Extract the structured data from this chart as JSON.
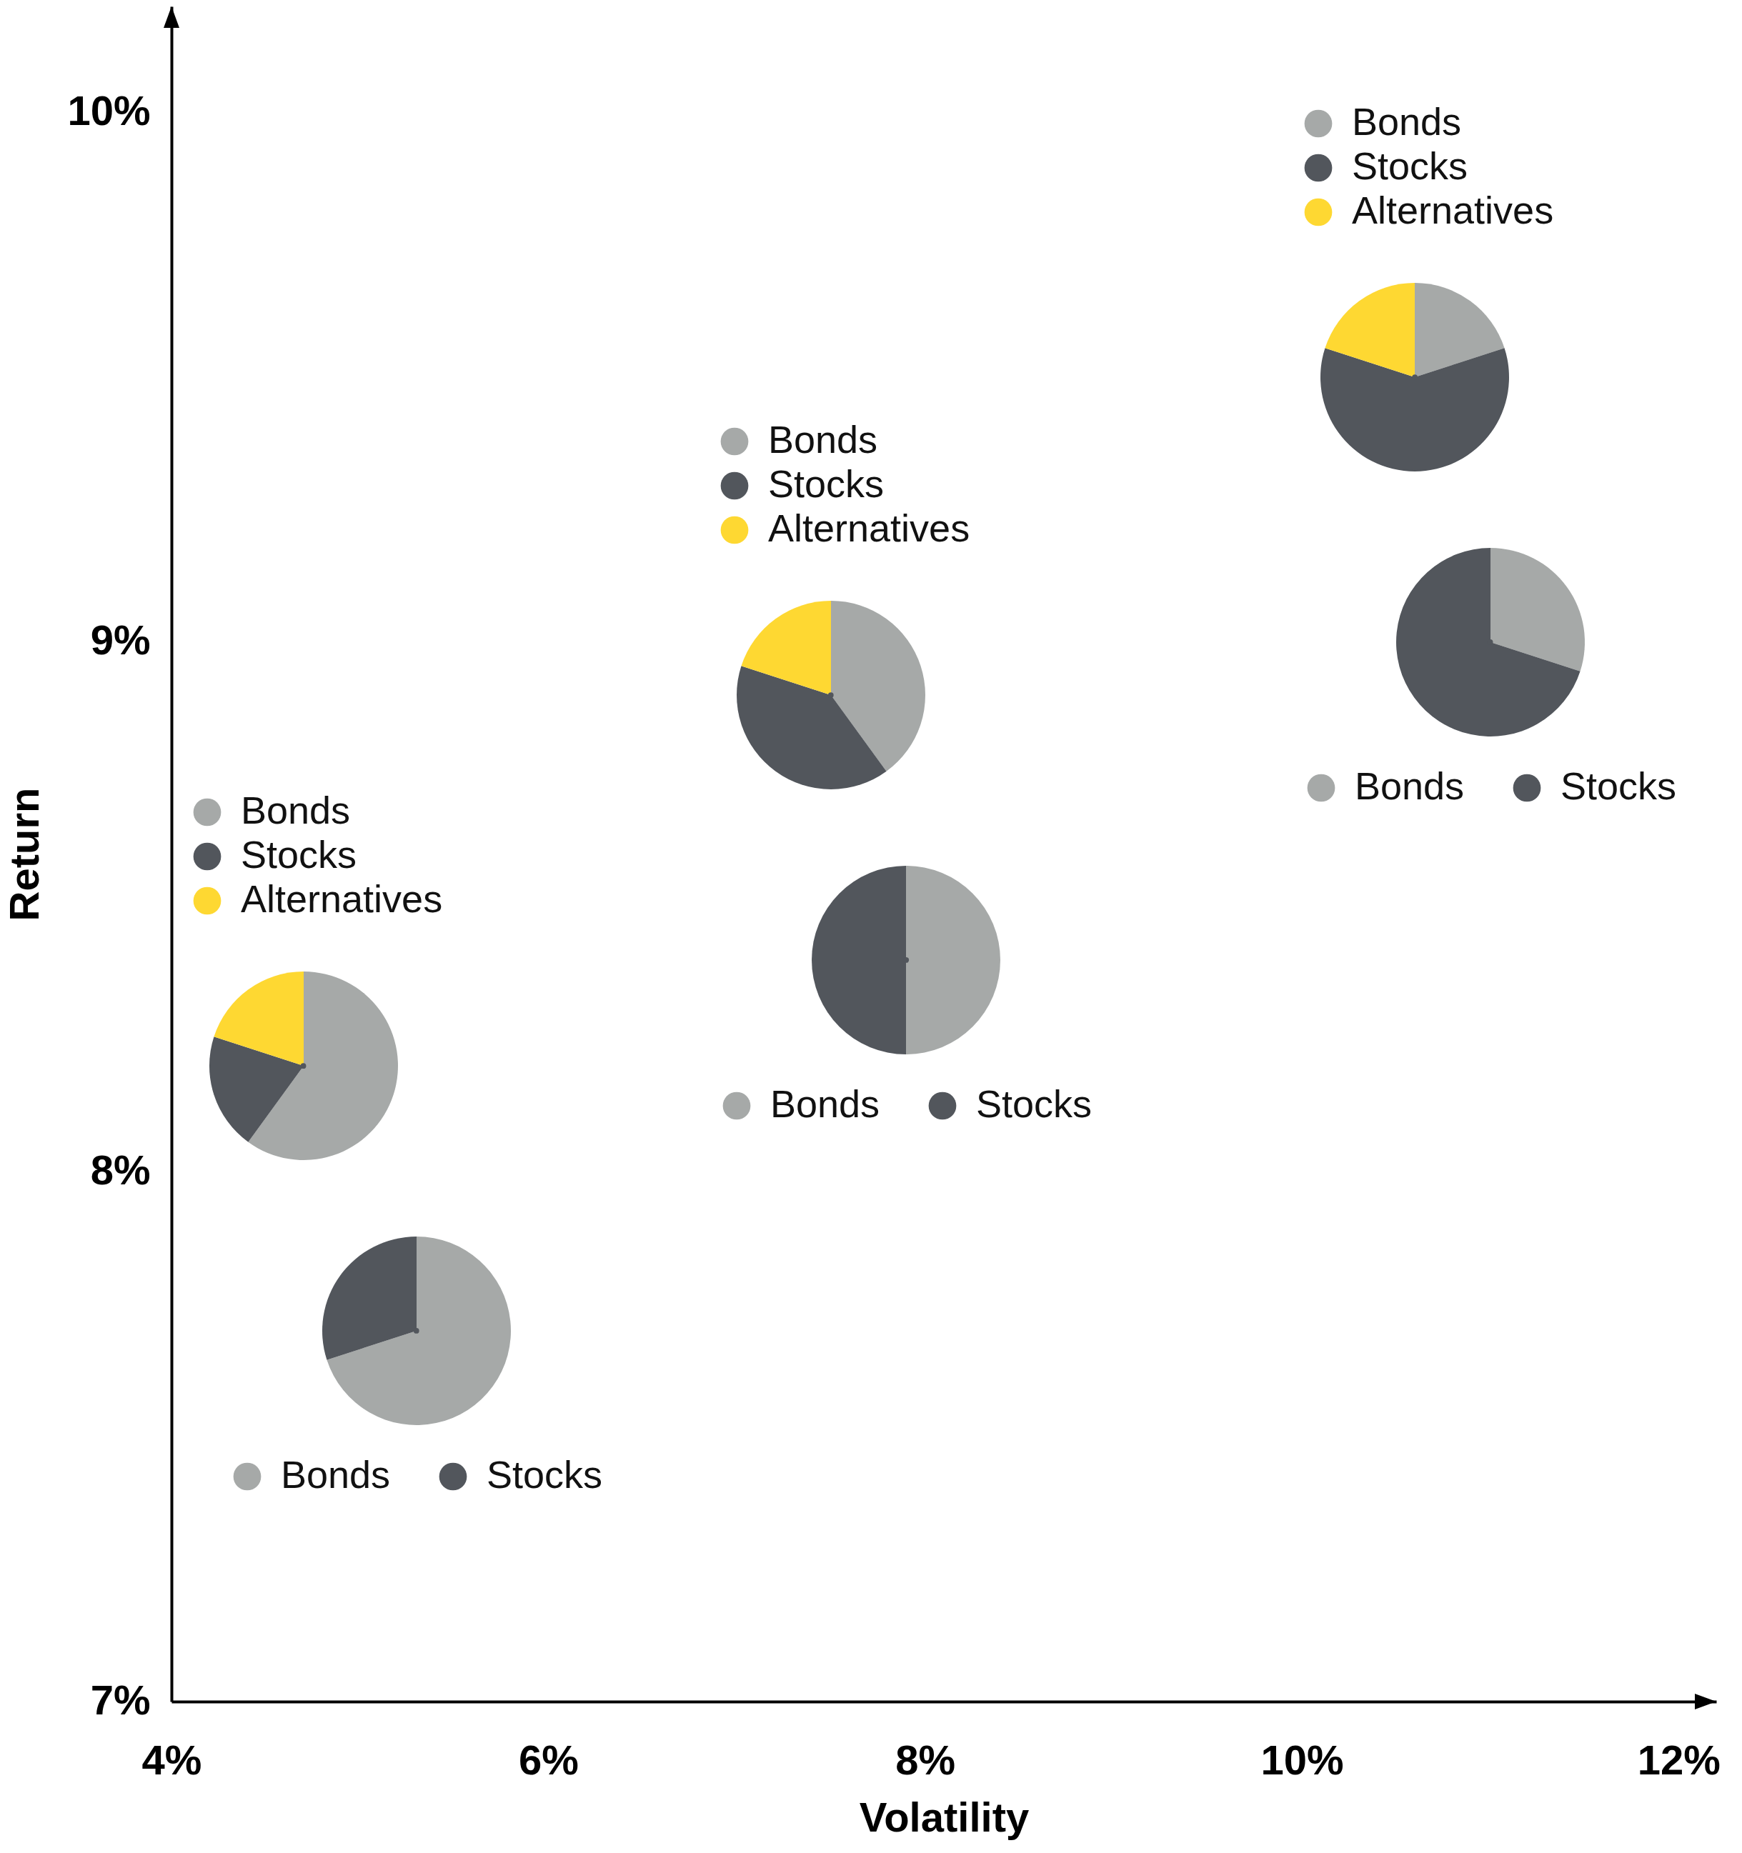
{
  "chart_data": [
    {
      "type": "scatter",
      "xlabel": "Volatility",
      "ylabel": "Return",
      "x": [
        4.7,
        5.3,
        7.5,
        7.9,
        10.6,
        11.0
      ],
      "values": [
        8.2,
        7.7,
        8.9,
        8.4,
        9.5,
        9.0
      ],
      "color": "#52565c",
      "marker": "circle",
      "xlim": [
        4,
        12.2
      ],
      "ylim": [
        7,
        10.2
      ],
      "xticks": [
        {
          "value": 4,
          "label": "4%"
        },
        {
          "value": 6,
          "label": "6%"
        },
        {
          "value": 8,
          "label": "8%"
        },
        {
          "value": 10,
          "label": "10%"
        },
        {
          "value": 12,
          "label": "12%"
        }
      ],
      "yticks": [
        {
          "value": 7,
          "label": "7%"
        },
        {
          "value": 8,
          "label": "8%"
        },
        {
          "value": 9,
          "label": "9%"
        },
        {
          "value": 10,
          "label": "10%"
        }
      ]
    },
    {
      "type": "pie",
      "categories": [
        "Bonds",
        "Stocks",
        "Alternatives"
      ],
      "values": [
        60,
        20,
        20
      ],
      "colors": [
        "#a6a9a8",
        "#52565c",
        "#fed832"
      ],
      "legend": "top"
    },
    {
      "type": "pie",
      "categories": [
        "Bonds",
        "Stocks"
      ],
      "values": [
        70,
        30
      ],
      "colors": [
        "#a6a9a8",
        "#52565c"
      ],
      "legend": "bottom"
    },
    {
      "type": "pie",
      "categories": [
        "Bonds",
        "Stocks",
        "Alternatives"
      ],
      "values": [
        40,
        40,
        20
      ],
      "colors": [
        "#a6a9a8",
        "#52565c",
        "#fed832"
      ],
      "legend": "top"
    },
    {
      "type": "pie",
      "categories": [
        "Bonds",
        "Stocks"
      ],
      "values": [
        50,
        50
      ],
      "colors": [
        "#a6a9a8",
        "#52565c"
      ],
      "legend": "bottom"
    },
    {
      "type": "pie",
      "categories": [
        "Bonds",
        "Stocks",
        "Alternatives"
      ],
      "values": [
        20,
        60,
        20
      ],
      "colors": [
        "#a6a9a8",
        "#52565c",
        "#fed832"
      ],
      "legend": "top"
    },
    {
      "type": "pie",
      "categories": [
        "Bonds",
        "Stocks"
      ],
      "values": [
        30,
        70
      ],
      "colors": [
        "#a6a9a8",
        "#52565c"
      ],
      "legend": "bottom"
    }
  ]
}
